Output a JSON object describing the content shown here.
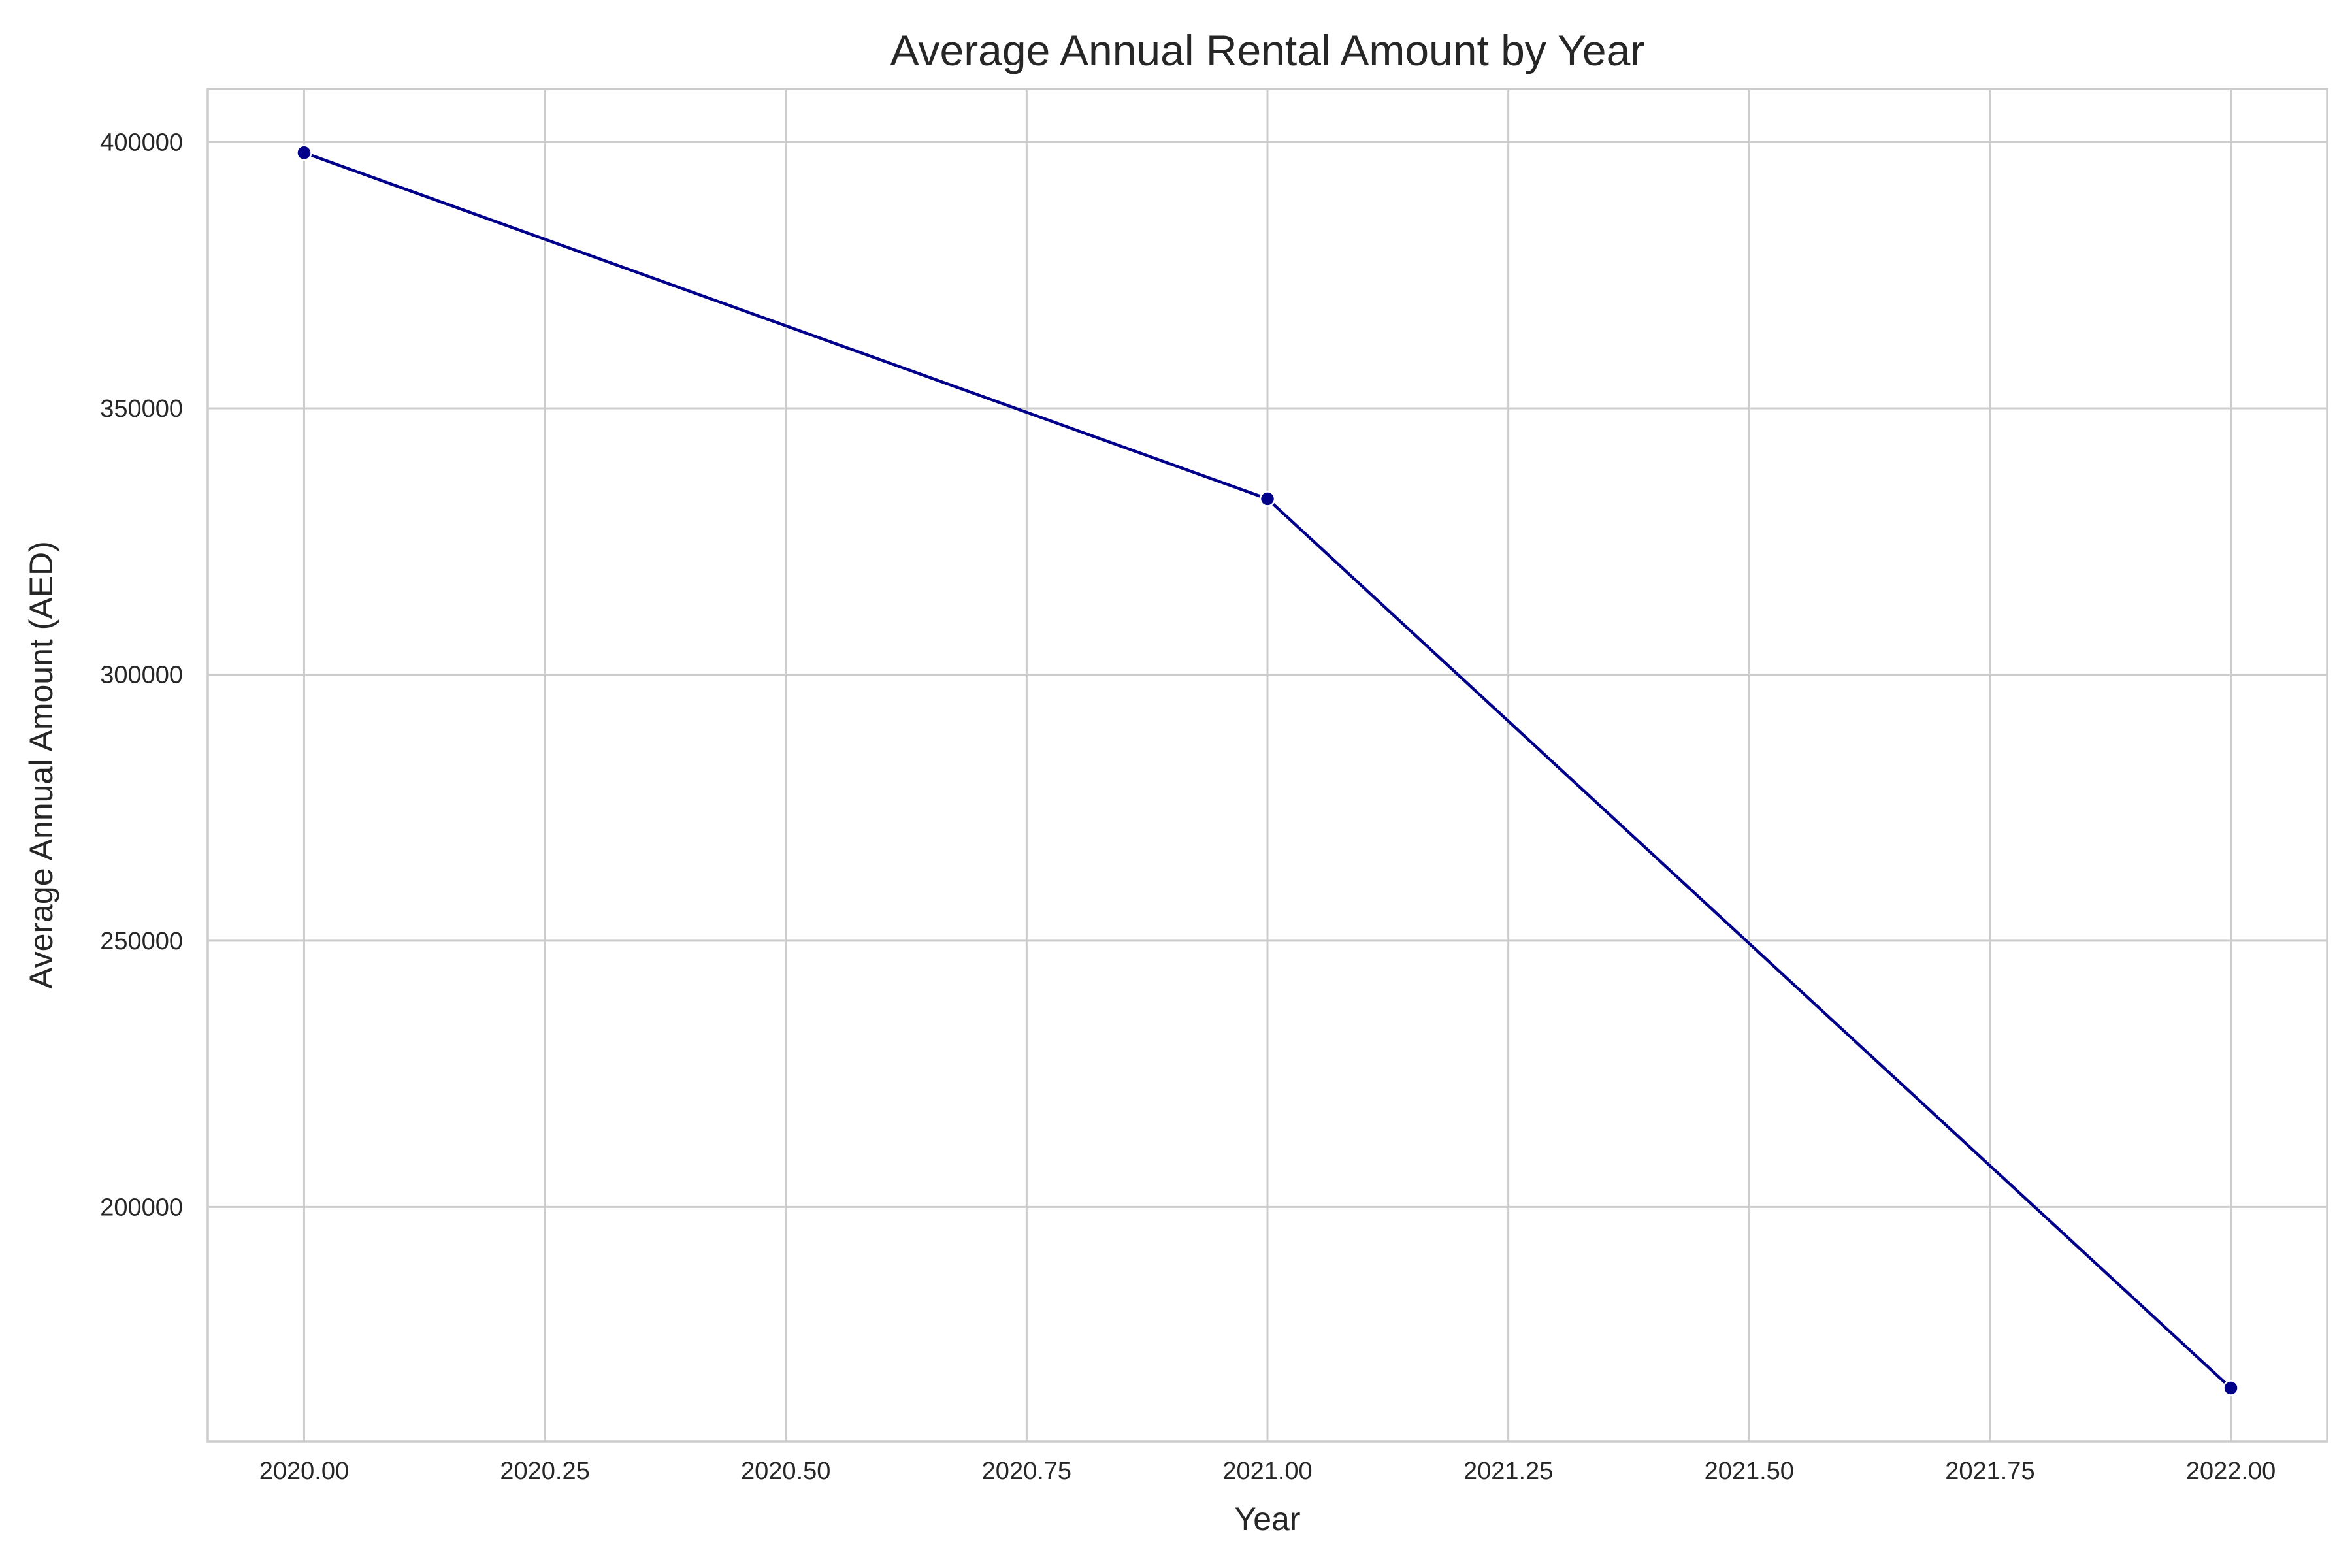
{
  "chart_data": {
    "type": "line",
    "title": "Average Annual Rental Amount by Year",
    "xlabel": "Year",
    "ylabel": "Average Annual Amount (AED)",
    "x": [
      2020,
      2021,
      2022
    ],
    "series": [
      {
        "values": [
          398000,
          333000,
          166000
        ],
        "color": "#00008b",
        "marker": "circle"
      }
    ],
    "xlim": [
      2019.9,
      2022.1
    ],
    "ylim": [
      156000,
      410000
    ],
    "x_ticks": [
      2020.0,
      2020.25,
      2020.5,
      2020.75,
      2021.0,
      2021.25,
      2021.5,
      2021.75,
      2022.0
    ],
    "x_tick_labels": [
      "2020.00",
      "2020.25",
      "2020.50",
      "2020.75",
      "2021.00",
      "2021.25",
      "2021.50",
      "2021.75",
      "2022.00"
    ],
    "y_ticks": [
      200000,
      250000,
      300000,
      350000,
      400000
    ],
    "y_tick_labels": [
      "200000",
      "250000",
      "300000",
      "350000",
      "400000"
    ],
    "grid": true,
    "colors": {
      "background": "#ffffff",
      "grid": "#cccccc",
      "axes_edge": "#cccccc",
      "text": "#262626"
    }
  }
}
